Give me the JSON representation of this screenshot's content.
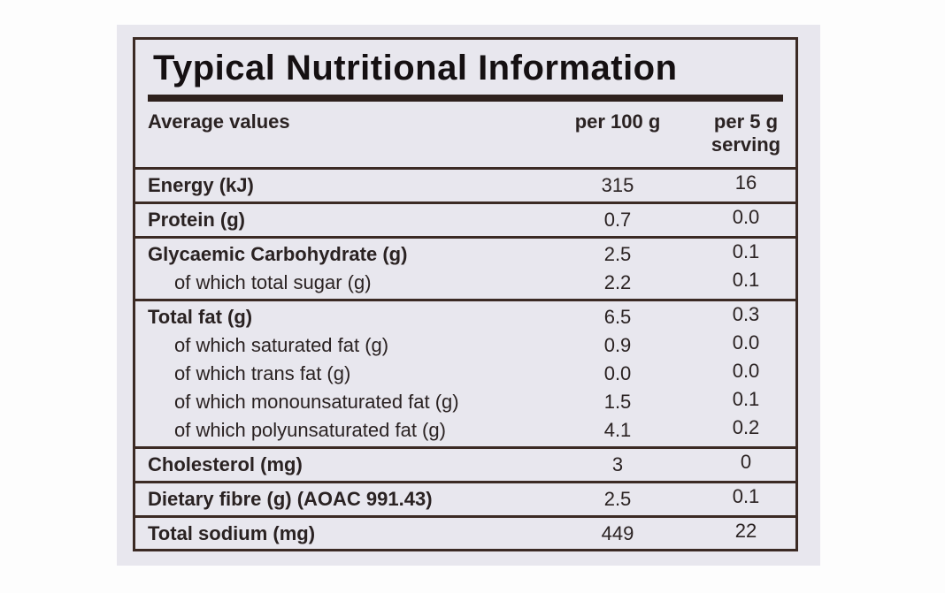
{
  "title": "Typical Nutritional Information",
  "header": {
    "name": "Average values",
    "per_100g": "per 100 g",
    "per_serving": "per 5 g serving"
  },
  "sections": [
    {
      "name": "Energy (kJ)",
      "per_100g": "315",
      "per_serving": "16",
      "items": []
    },
    {
      "name": "Protein (g)",
      "per_100g": "0.7",
      "per_serving": "0.0",
      "items": []
    },
    {
      "name": "Glycaemic Carbohydrate (g)",
      "per_100g": "2.5",
      "per_serving": "0.1",
      "items": [
        {
          "name": "of which total sugar (g)",
          "per_100g": "2.2",
          "per_serving": "0.1"
        }
      ]
    },
    {
      "name": "Total fat (g)",
      "per_100g": "6.5",
      "per_serving": "0.3",
      "items": [
        {
          "name": "of which saturated fat (g)",
          "per_100g": "0.9",
          "per_serving": "0.0"
        },
        {
          "name": "of which trans fat (g)",
          "per_100g": "0.0",
          "per_serving": "0.0"
        },
        {
          "name": "of which monounsaturated fat (g)",
          "per_100g": "1.5",
          "per_serving": "0.1"
        },
        {
          "name": "of which polyunsaturated fat (g)",
          "per_100g": "4.1",
          "per_serving": "0.2"
        }
      ]
    },
    {
      "name": "Cholesterol (mg)",
      "per_100g": "3",
      "per_serving": "0",
      "items": []
    },
    {
      "name": "Dietary fibre (g) (AOAC 991.43)",
      "per_100g": "2.5",
      "per_serving": "0.1",
      "items": []
    },
    {
      "name": "Total sodium (mg)",
      "per_100g": "449",
      "per_serving": "22",
      "items": []
    }
  ]
}
